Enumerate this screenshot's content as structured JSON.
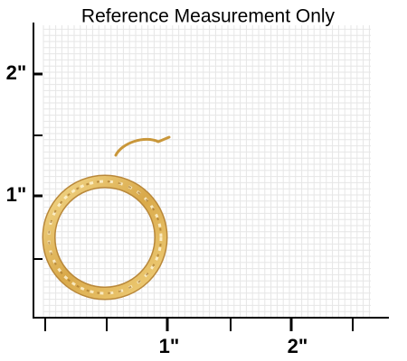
{
  "title": "Reference Measurement Only",
  "y_axis": {
    "labels": [
      "2\"",
      "1\""
    ]
  },
  "x_axis": {
    "labels": [
      "1\"",
      "2\""
    ]
  }
}
